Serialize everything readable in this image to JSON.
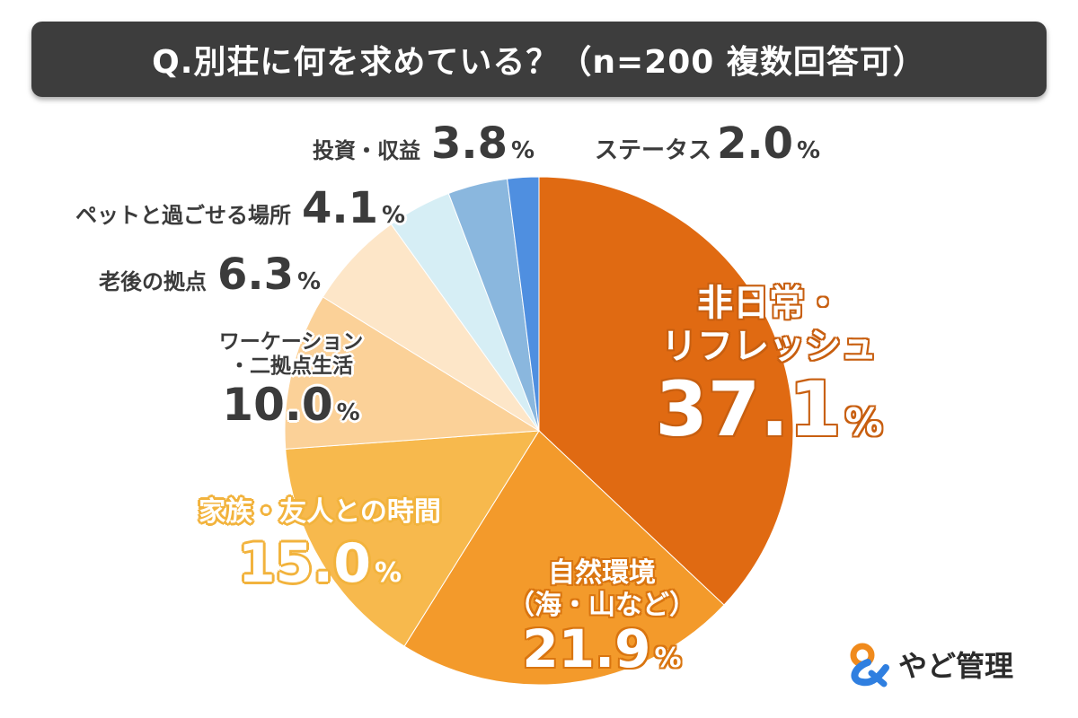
{
  "header": {
    "title": "Q.別荘に何を求めている？（n=200 複数回答可）"
  },
  "chart_data": {
    "type": "pie",
    "title": "Q.別荘に何を求めている？（n=200 複数回答可）",
    "start_angle": "12 o'clock",
    "direction": "clockwise",
    "unit": "%",
    "slices": [
      {
        "name": "非日常・リフレッシュ",
        "value": 37.1,
        "value_text": "37.1",
        "color": "#e06a12"
      },
      {
        "name": "自然環境（海・山など）",
        "value": 21.9,
        "value_text": "21.9",
        "color": "#f39a2b"
      },
      {
        "name": "家族・友人との時間",
        "value": 15.0,
        "value_text": "15.0",
        "color": "#f7b94d"
      },
      {
        "name": "ワーケーション・二拠点生活",
        "value": 10.0,
        "value_text": "10.0",
        "color": "#fbd198"
      },
      {
        "name": "老後の拠点",
        "value": 6.3,
        "value_text": "6.3",
        "color": "#fde6c8"
      },
      {
        "name": "ペットと過ごせる場所",
        "value": 4.1,
        "value_text": "4.1",
        "color": "#d6eef5"
      },
      {
        "name": "投資・収益",
        "value": 3.8,
        "value_text": "3.8",
        "color": "#8ab7de"
      },
      {
        "name": "ステータス",
        "value": 2.0,
        "value_text": "2.0",
        "color": "#4f8fe0"
      }
    ]
  },
  "labels": {
    "refresh": {
      "line1": "非日常・",
      "line2": "リフレッシュ",
      "value": "37.1",
      "unit": "%"
    },
    "nature": {
      "line1": "自然環境",
      "line2": "（海・山など）",
      "value": "21.9",
      "unit": "%"
    },
    "family": {
      "line1": "家族・友人との時間",
      "value": "15.0",
      "unit": "%"
    },
    "workation": {
      "line1": "ワーケーション",
      "line2": "・二拠点生活",
      "value": "10.0",
      "unit": "%"
    },
    "retire": {
      "name": "老後の拠点",
      "value": "6.3",
      "unit": "%"
    },
    "pet": {
      "name": "ペットと過ごせる場所",
      "value": "4.1",
      "unit": "%"
    },
    "invest": {
      "name": "投資・収益",
      "value": "3.8",
      "unit": "%"
    },
    "status": {
      "name": "ステータス",
      "value": "2.0",
      "unit": "%"
    }
  },
  "brand": {
    "name": "やど管理",
    "logo_icon": "ampersand-logo-icon",
    "colors": {
      "orange": "#f08a1c",
      "blue": "#2f7fe0"
    }
  }
}
